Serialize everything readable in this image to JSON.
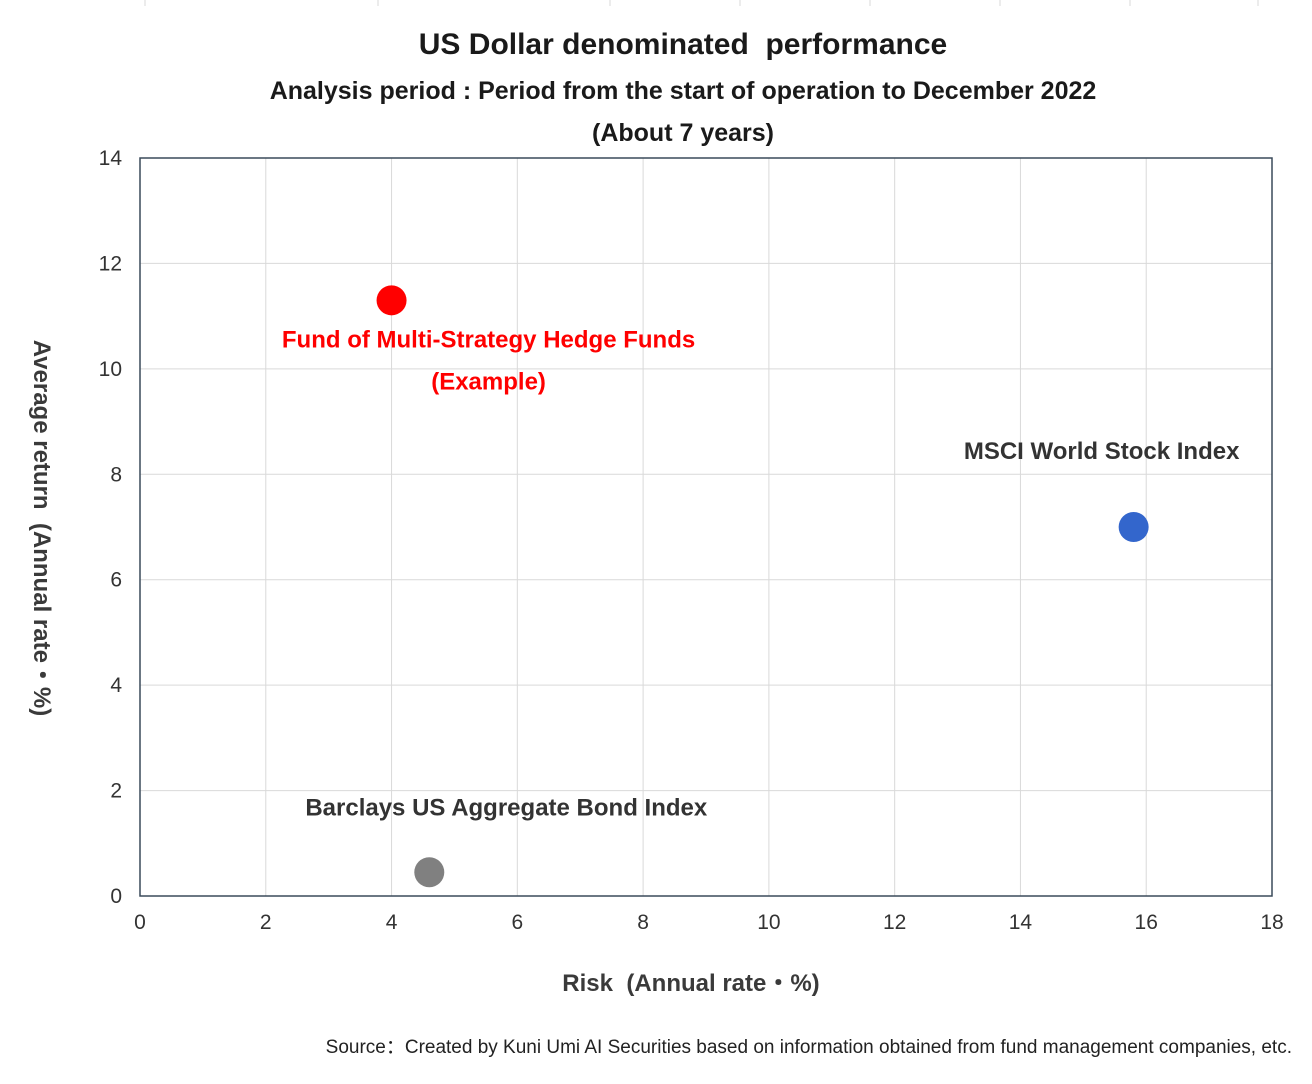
{
  "chart_data": {
    "type": "scatter",
    "title": "US Dollar denominated  performance",
    "subtitle_lines": [
      "Analysis period : Period from the start of operation to December 2022",
      "(About 7 years)"
    ],
    "xlabel": "Risk  (Annual rate・%)",
    "ylabel": "Average return  (Annual rate・%)",
    "xlim": [
      0,
      18
    ],
    "ylim": [
      0,
      14
    ],
    "x_ticks": [
      0,
      2,
      4,
      6,
      8,
      10,
      12,
      14,
      16,
      18
    ],
    "y_ticks": [
      0,
      2,
      4,
      6,
      8,
      10,
      12,
      14
    ],
    "grid": true,
    "legend": "none",
    "points": [
      {
        "label_lines": [
          "Fund of Multi-Strategy Hedge Funds",
          "(Example)"
        ],
        "x": 4.0,
        "y": 11.3,
        "color": "#ff0000",
        "label_color": "#ff0000"
      },
      {
        "label_lines": [
          "MSCI World Stock Index"
        ],
        "x": 15.8,
        "y": 7.0,
        "color": "#3366cc",
        "label_color": "#333333"
      },
      {
        "label_lines": [
          "Barclays US Aggregate Bond Index"
        ],
        "x": 4.6,
        "y": 0.45,
        "color": "#808080",
        "label_color": "#333333"
      }
    ],
    "source": "Source：Created by Kuni Umi AI Securities based on information obtained from fund management companies, etc."
  }
}
